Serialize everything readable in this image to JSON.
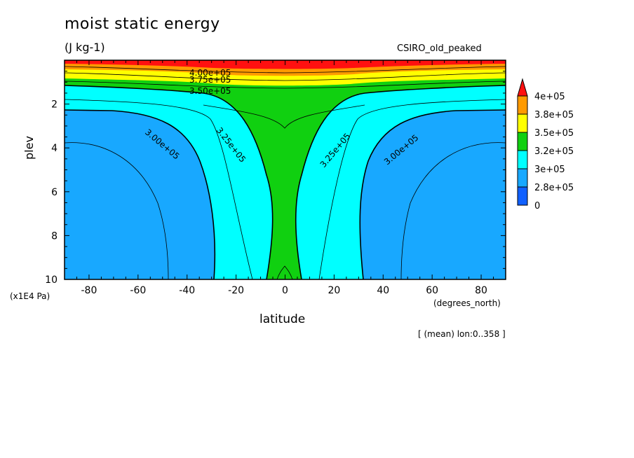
{
  "chart_data": {
    "type": "contour",
    "title": "moist static energy",
    "units": "(J kg-1)",
    "source_label": "CSIRO_old_peaked",
    "xlabel": "latitude",
    "x_units": "(degrees_north)",
    "ylabel": "plev",
    "y_scale_note": "(x1E4 Pa)",
    "footer": "[ (mean) lon:0..358 ]",
    "xlim": [
      -90,
      90
    ],
    "ylim": [
      10,
      0
    ],
    "x_ticks": [
      "-80",
      "-60",
      "-40",
      "-20",
      "0",
      "20",
      "40",
      "60",
      "80"
    ],
    "y_ticks": [
      "2",
      "4",
      "6",
      "8",
      "10"
    ],
    "colorbar": {
      "labels": [
        "4e+05",
        "3.8e+05",
        "3.5e+05",
        "3.2e+05",
        "3e+05",
        "2.8e+05",
        "0"
      ],
      "colors": [
        "#ff1010",
        "#ff9a00",
        "#ffff00",
        "#10d010",
        "#00ffff",
        "#18a8ff",
        "#1060ff"
      ]
    },
    "contour_labels": [
      "4.00e+05",
      "3.75e+05",
      "3.50e+05",
      "3.25e+05",
      "3.00e+05",
      "3.25e+05",
      "3.00e+05"
    ],
    "fill_colors": {
      "red": "#ff1010",
      "orange": "#ff9a00",
      "yellow": "#ffff00",
      "green": "#10d010",
      "cyan": "#00ffff",
      "blue": "#18a8ff"
    }
  }
}
